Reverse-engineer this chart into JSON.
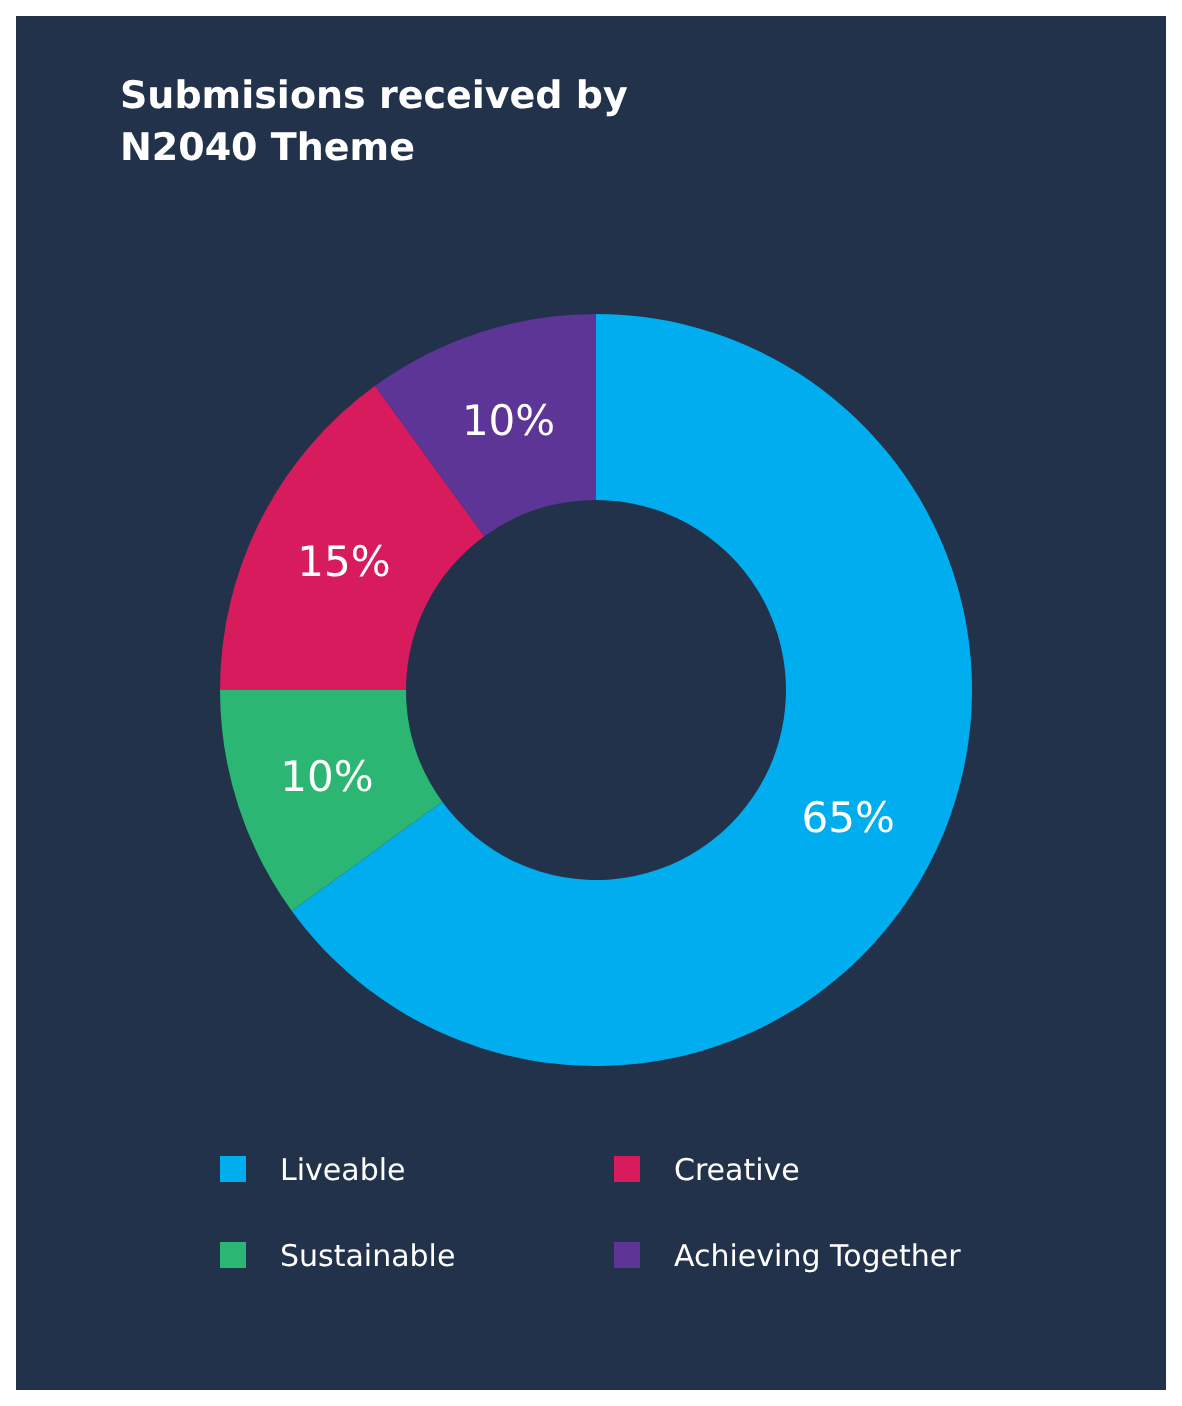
{
  "chart_data": {
    "type": "donut",
    "title": "Submisions received by\nN2040 Theme",
    "categories": [
      "Liveable",
      "Sustainable",
      "Creative",
      "Achieving Together"
    ],
    "values": [
      65,
      10,
      15,
      10
    ],
    "colors": [
      "#00aeef",
      "#2bb673",
      "#d81b5c",
      "#5c3596"
    ],
    "value_labels": [
      "65%",
      "10%",
      "15%",
      "10%"
    ],
    "legend": "bottom"
  }
}
